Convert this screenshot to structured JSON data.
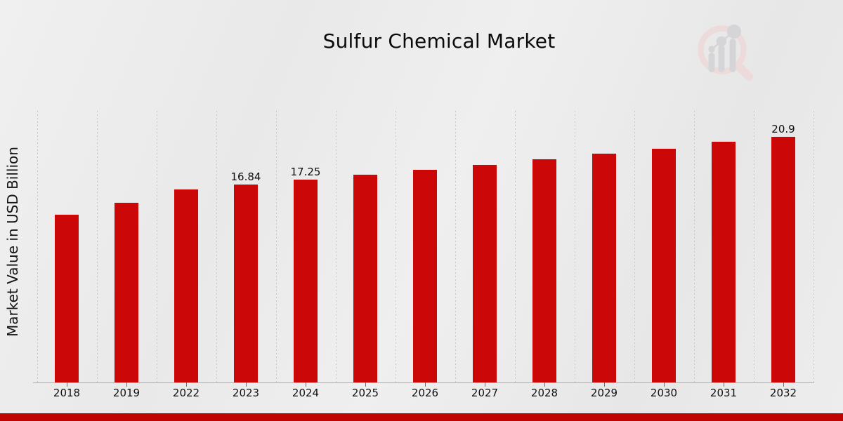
{
  "title": "Sulfur Chemical Market",
  "y_axis_label": "Market Value in USD Billion",
  "watermark_icon": "magnifier-bar-chart-logo",
  "colors": {
    "bar": "#cb0707",
    "bottom_strip": "#c00404",
    "axis_line": "#b3b3b3",
    "tick": "#6f6f6f",
    "gridline": "#c7c7c7",
    "text": "#111111",
    "logo_ring": "#eedada",
    "logo_gray": "#d3d3d6"
  },
  "chart_data": {
    "type": "bar",
    "title": "Sulfur Chemical Market",
    "xlabel": "",
    "ylabel": "Market Value in USD Billion",
    "categories": [
      "2018",
      "2019",
      "2022",
      "2023",
      "2024",
      "2025",
      "2026",
      "2027",
      "2028",
      "2029",
      "2030",
      "2031",
      "2032"
    ],
    "values": [
      14.25,
      15.3,
      16.4,
      16.84,
      17.25,
      17.7,
      18.1,
      18.5,
      19.0,
      19.45,
      19.9,
      20.5,
      20.9
    ],
    "value_labels": [
      "",
      "",
      "",
      "16.84",
      "17.25",
      "",
      "",
      "",
      "",
      "",
      "",
      "",
      "20.9"
    ],
    "ylim": [
      0,
      23.1
    ],
    "grid": "vertical-dashed",
    "legend": "none",
    "bar_color": "#cb0707"
  }
}
